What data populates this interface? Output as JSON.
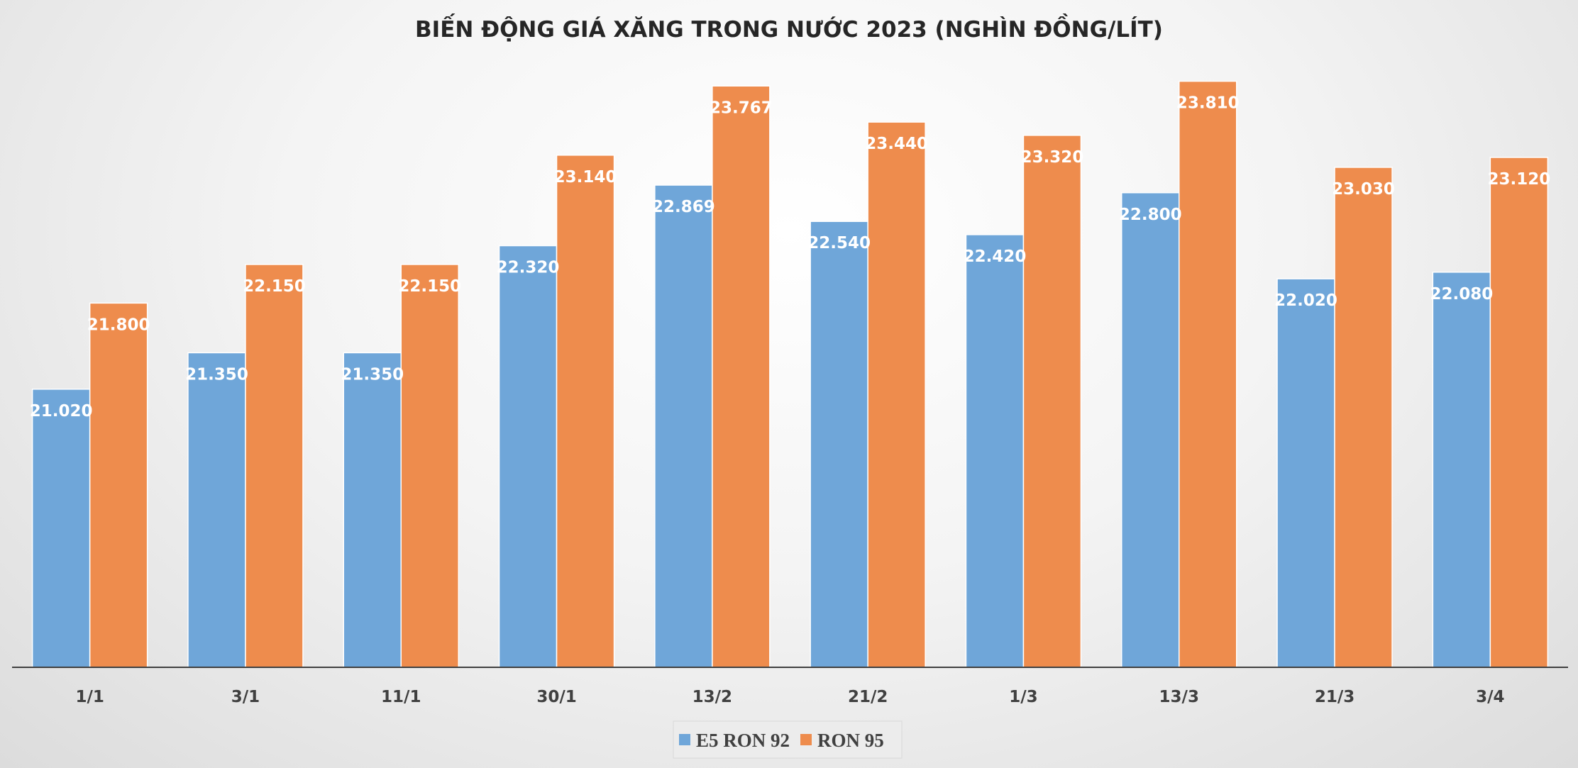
{
  "chart_data": {
    "type": "bar",
    "title": "BIẾN ĐỘNG GIÁ XĂNG TRONG NƯỚC 2023 (NGHÌN ĐỒNG/LÍT)",
    "xlabel": "",
    "ylabel": "",
    "categories": [
      "1/1",
      "3/1",
      "11/1",
      "30/1",
      "13/2",
      "21/2",
      "1/3",
      "13/3",
      "21/3",
      "3/4"
    ],
    "series": [
      {
        "name": "E5 RON 92",
        "color": "#6fa6d9",
        "values": [
          21.02,
          21.35,
          21.35,
          22.32,
          22.869,
          22.54,
          22.42,
          22.8,
          22.02,
          22.08
        ],
        "labels": [
          "21.020",
          "21.350",
          "21.350",
          "22.320",
          "22.869",
          "22.540",
          "22.420",
          "22.800",
          "22.020",
          "22.080"
        ]
      },
      {
        "name": "RON 95",
        "color": "#ee8c4d",
        "values": [
          21.8,
          22.15,
          22.15,
          23.14,
          23.767,
          23.44,
          23.32,
          23.81,
          23.03,
          23.12
        ],
        "labels": [
          "21.800",
          "22.150",
          "22.150",
          "23.140",
          "23.767",
          "23.440",
          "23.320",
          "23.810",
          "23.030",
          "23.120"
        ]
      }
    ],
    "ylim": [
      18.5,
      24.0
    ],
    "grid": false,
    "legend_position": "bottom"
  }
}
